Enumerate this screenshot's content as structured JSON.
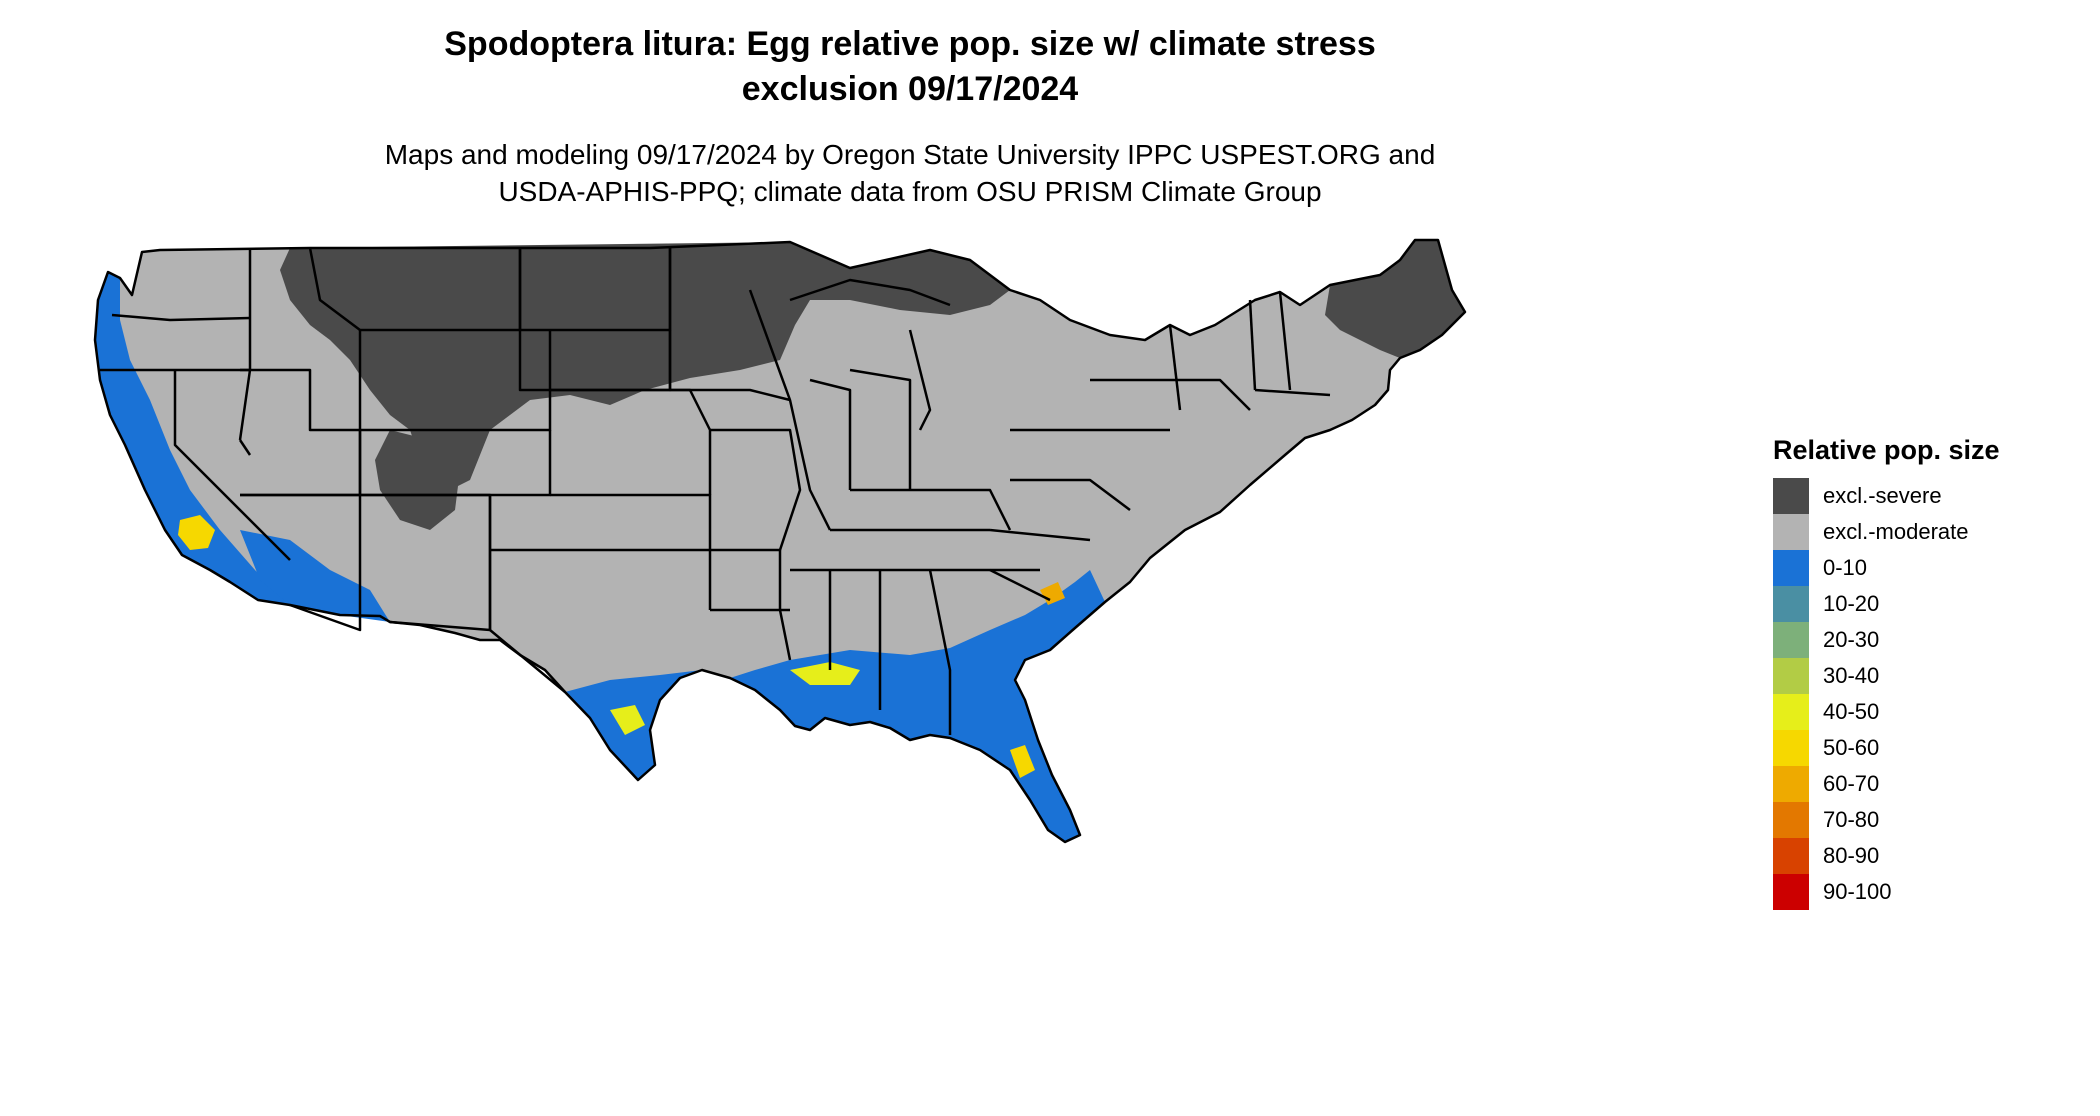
{
  "title": {
    "line1": "Spodoptera litura: Egg relative pop. size w/ climate stress",
    "line2": "exclusion 09/17/2024"
  },
  "subtitle": {
    "line1": "Maps and modeling 09/17/2024 by Oregon State University IPPC USPEST.ORG and",
    "line2": "USDA-APHIS-PPQ; climate data from OSU PRISM Climate Group"
  },
  "legend": {
    "title": "Relative pop. size",
    "items": [
      {
        "label": "excl.-severe",
        "color": "#4a4a4a"
      },
      {
        "label": "excl.-moderate",
        "color": "#b3b3b3"
      },
      {
        "label": "0-10",
        "color": "#1a72d6"
      },
      {
        "label": "10-20",
        "color": "#4a8fa3"
      },
      {
        "label": "20-30",
        "color": "#7db07a"
      },
      {
        "label": "30-40",
        "color": "#b2cc45"
      },
      {
        "label": "40-50",
        "color": "#e6ee1a"
      },
      {
        "label": "50-60",
        "color": "#f6d800"
      },
      {
        "label": "60-70",
        "color": "#eeaa00"
      },
      {
        "label": "70-80",
        "color": "#e37800"
      },
      {
        "label": "80-90",
        "color": "#d84200"
      },
      {
        "label": "90-100",
        "color": "#cc0000"
      }
    ]
  },
  "colors": {
    "state_border": "#000000",
    "background": "#ffffff"
  }
}
